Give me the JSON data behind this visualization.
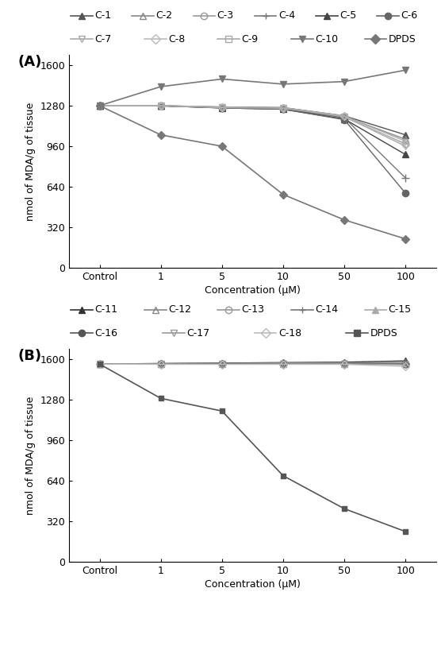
{
  "x_labels": [
    "Control",
    "1",
    "5",
    "10",
    "50",
    "100"
  ],
  "x_positions": [
    0,
    1,
    2,
    3,
    4,
    5
  ],
  "panel_A": {
    "label": "(A)",
    "series": [
      {
        "name": "C-1",
        "color": "#555555",
        "marker": "^",
        "fillstyle": "full",
        "markersize": 6,
        "linewidth": 1.0,
        "values": [
          1280,
          1280,
          1270,
          1265,
          1200,
          1050
        ]
      },
      {
        "name": "C-2",
        "color": "#888888",
        "marker": "^",
        "fillstyle": "none",
        "markersize": 6,
        "linewidth": 1.0,
        "values": [
          1280,
          1280,
          1265,
          1260,
          1195,
          1015
        ]
      },
      {
        "name": "C-3",
        "color": "#999999",
        "marker": "o",
        "fillstyle": "none",
        "markersize": 6,
        "linewidth": 1.0,
        "values": [
          1280,
          1280,
          1265,
          1258,
          1190,
          980
        ]
      },
      {
        "name": "C-4",
        "color": "#777777",
        "marker": "+",
        "fillstyle": "full",
        "markersize": 7,
        "linewidth": 1.0,
        "values": [
          1280,
          1278,
          1263,
          1255,
          1185,
          710
        ]
      },
      {
        "name": "C-5",
        "color": "#444444",
        "marker": "^",
        "fillstyle": "full",
        "markersize": 6,
        "linewidth": 1.0,
        "values": [
          1280,
          1279,
          1262,
          1252,
          1175,
          895
        ]
      },
      {
        "name": "C-6",
        "color": "#666666",
        "marker": "o",
        "fillstyle": "full",
        "markersize": 6,
        "linewidth": 1.0,
        "values": [
          1280,
          1279,
          1262,
          1252,
          1170,
          590
        ]
      },
      {
        "name": "C-7",
        "color": "#aaaaaa",
        "marker": "v",
        "fillstyle": "none",
        "markersize": 6,
        "linewidth": 1.0,
        "values": [
          1280,
          1280,
          1265,
          1260,
          1195,
          960
        ]
      },
      {
        "name": "C-8",
        "color": "#bbbbbb",
        "marker": "D",
        "fillstyle": "none",
        "markersize": 5,
        "linewidth": 1.0,
        "values": [
          1280,
          1280,
          1267,
          1262,
          1198,
          975
        ]
      },
      {
        "name": "C-9",
        "color": "#aaaaaa",
        "marker": "s",
        "fillstyle": "none",
        "markersize": 5,
        "linewidth": 1.0,
        "values": [
          1280,
          1280,
          1268,
          1263,
          1200,
          1000
        ]
      },
      {
        "name": "C-10",
        "color": "#777777",
        "marker": "v",
        "fillstyle": "full",
        "markersize": 6,
        "linewidth": 1.2,
        "values": [
          1280,
          1430,
          1490,
          1450,
          1470,
          1560
        ]
      },
      {
        "name": "DPDS",
        "color": "#777777",
        "marker": "D",
        "fillstyle": "full",
        "markersize": 5,
        "linewidth": 1.2,
        "values": [
          1280,
          1050,
          960,
          580,
          380,
          230
        ]
      }
    ],
    "ylabel": "nmol of MDA/g of tissue",
    "ylim": [
      0,
      1680
    ],
    "yticks": [
      0,
      320,
      640,
      960,
      1280,
      1600
    ]
  },
  "panel_B": {
    "label": "(B)",
    "series": [
      {
        "name": "C-11",
        "color": "#333333",
        "marker": "^",
        "fillstyle": "full",
        "markersize": 6,
        "linewidth": 1.0,
        "values": [
          1560,
          1565,
          1568,
          1572,
          1575,
          1585
        ]
      },
      {
        "name": "C-12",
        "color": "#888888",
        "marker": "^",
        "fillstyle": "none",
        "markersize": 6,
        "linewidth": 1.0,
        "values": [
          1560,
          1563,
          1566,
          1568,
          1570,
          1572
        ]
      },
      {
        "name": "C-13",
        "color": "#999999",
        "marker": "o",
        "fillstyle": "none",
        "markersize": 6,
        "linewidth": 1.0,
        "values": [
          1560,
          1562,
          1563,
          1565,
          1566,
          1560
        ]
      },
      {
        "name": "C-14",
        "color": "#777777",
        "marker": "+",
        "fillstyle": "full",
        "markersize": 7,
        "linewidth": 1.0,
        "values": [
          1560,
          1561,
          1563,
          1563,
          1563,
          1562
        ]
      },
      {
        "name": "C-15",
        "color": "#aaaaaa",
        "marker": "^",
        "fillstyle": "full",
        "markersize": 6,
        "linewidth": 1.0,
        "values": [
          1560,
          1562,
          1563,
          1564,
          1564,
          1563
        ]
      },
      {
        "name": "C-16",
        "color": "#555555",
        "marker": "o",
        "fillstyle": "full",
        "markersize": 6,
        "linewidth": 1.0,
        "values": [
          1560,
          1560,
          1562,
          1562,
          1562,
          1560
        ]
      },
      {
        "name": "C-17",
        "color": "#999999",
        "marker": "v",
        "fillstyle": "none",
        "markersize": 6,
        "linewidth": 1.0,
        "values": [
          1560,
          1560,
          1560,
          1561,
          1561,
          1555
        ]
      },
      {
        "name": "C-18",
        "color": "#bbbbbb",
        "marker": "D",
        "fillstyle": "none",
        "markersize": 5,
        "linewidth": 1.0,
        "values": [
          1560,
          1558,
          1558,
          1558,
          1558,
          1542
        ]
      },
      {
        "name": "DPDS",
        "color": "#555555",
        "marker": "s",
        "fillstyle": "full",
        "markersize": 5,
        "linewidth": 1.2,
        "values": [
          1560,
          1290,
          1190,
          680,
          420,
          240
        ]
      }
    ],
    "ylabel": "nmol of MDA/g of tissue",
    "ylim": [
      0,
      1680
    ],
    "yticks": [
      0,
      320,
      640,
      960,
      1280,
      1600
    ]
  },
  "legend_A_row1": [
    {
      "name": "C-1",
      "color": "#555555",
      "marker": "^",
      "fillstyle": "full"
    },
    {
      "name": "C-2",
      "color": "#888888",
      "marker": "^",
      "fillstyle": "none"
    },
    {
      "name": "C-3",
      "color": "#999999",
      "marker": "o",
      "fillstyle": "none"
    },
    {
      "name": "C-4",
      "color": "#777777",
      "marker": "+",
      "fillstyle": "full"
    },
    {
      "name": "C-5",
      "color": "#444444",
      "marker": "^",
      "fillstyle": "full"
    },
    {
      "name": "C-6",
      "color": "#666666",
      "marker": "o",
      "fillstyle": "full"
    }
  ],
  "legend_A_row2": [
    {
      "name": "C-7",
      "color": "#aaaaaa",
      "marker": "v",
      "fillstyle": "none"
    },
    {
      "name": "C-8",
      "color": "#bbbbbb",
      "marker": "D",
      "fillstyle": "none"
    },
    {
      "name": "C-9",
      "color": "#aaaaaa",
      "marker": "s",
      "fillstyle": "none"
    },
    {
      "name": "C-10",
      "color": "#777777",
      "marker": "v",
      "fillstyle": "full"
    },
    {
      "name": "DPDS",
      "color": "#777777",
      "marker": "D",
      "fillstyle": "full"
    }
  ],
  "legend_B_row1": [
    {
      "name": "C-11",
      "color": "#333333",
      "marker": "^",
      "fillstyle": "full"
    },
    {
      "name": "C-12",
      "color": "#888888",
      "marker": "^",
      "fillstyle": "none"
    },
    {
      "name": "C-13",
      "color": "#999999",
      "marker": "o",
      "fillstyle": "none"
    },
    {
      "name": "C-14",
      "color": "#777777",
      "marker": "+",
      "fillstyle": "full"
    },
    {
      "name": "C-15",
      "color": "#aaaaaa",
      "marker": "^",
      "fillstyle": "full"
    }
  ],
  "legend_B_row2": [
    {
      "name": "C-16",
      "color": "#555555",
      "marker": "o",
      "fillstyle": "full"
    },
    {
      "name": "C-17",
      "color": "#999999",
      "marker": "v",
      "fillstyle": "none"
    },
    {
      "name": "C-18",
      "color": "#bbbbbb",
      "marker": "D",
      "fillstyle": "none"
    },
    {
      "name": "DPDS",
      "color": "#555555",
      "marker": "s",
      "fillstyle": "full"
    }
  ],
  "xlabel": "Concentration (μM)",
  "bg_color": "#ffffff",
  "text_color": "#000000",
  "font_size": 9,
  "label_fontsize": 13
}
